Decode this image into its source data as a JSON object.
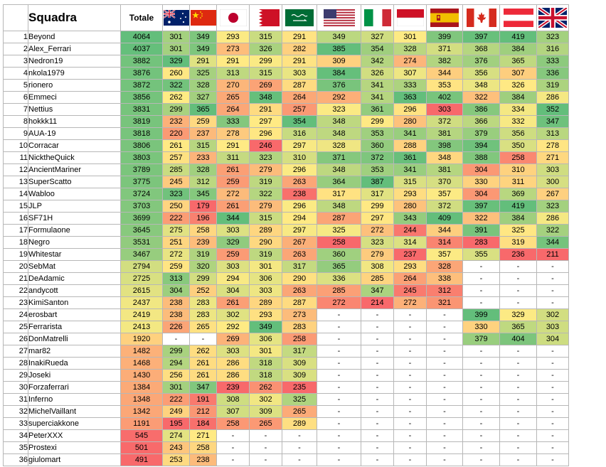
{
  "header": {
    "team_label": "Squadra",
    "total_label": "Totale",
    "flags": [
      "Australia",
      "China",
      "Japan",
      "Bahrain",
      "Saudi Arabia",
      "United States",
      "Italy",
      "Monaco",
      "Spain",
      "Canada",
      "Austria",
      "United Kingdom"
    ]
  },
  "rows": [
    {
      "idx": "1",
      "name": "Beyond",
      "total": "4064",
      "scores": [
        "301",
        "349",
        "293",
        "315",
        "291",
        "349",
        "327",
        "301",
        "399",
        "397",
        "419",
        "323"
      ]
    },
    {
      "idx": "2",
      "name": "Alex_Ferrari",
      "total": "4037",
      "scores": [
        "301",
        "349",
        "273",
        "326",
        "282",
        "385",
        "354",
        "328",
        "371",
        "368",
        "384",
        "316"
      ]
    },
    {
      "idx": "3",
      "name": "Nedron19",
      "total": "3882",
      "scores": [
        "329",
        "291",
        "291",
        "299",
        "291",
        "309",
        "342",
        "274",
        "382",
        "376",
        "365",
        "333"
      ]
    },
    {
      "idx": "4",
      "name": "nkola1979",
      "total": "3876",
      "scores": [
        "260",
        "325",
        "313",
        "315",
        "303",
        "384",
        "326",
        "307",
        "344",
        "356",
        "307",
        "336"
      ]
    },
    {
      "idx": "5",
      "name": "rionero",
      "total": "3872",
      "scores": [
        "322",
        "328",
        "270",
        "269",
        "287",
        "376",
        "341",
        "333",
        "353",
        "348",
        "326",
        "319"
      ]
    },
    {
      "idx": "6",
      "name": "Emmeci",
      "total": "3856",
      "scores": [
        "262",
        "327",
        "265",
        "348",
        "264",
        "292",
        "341",
        "363",
        "402",
        "322",
        "384",
        "286"
      ]
    },
    {
      "idx": "7",
      "name": "Nettius",
      "total": "3831",
      "scores": [
        "299",
        "365",
        "264",
        "291",
        "257",
        "323",
        "361",
        "296",
        "303",
        "386",
        "334",
        "352"
      ]
    },
    {
      "idx": "8",
      "name": "hokkk11",
      "total": "3819",
      "scores": [
        "232",
        "259",
        "333",
        "297",
        "354",
        "348",
        "299",
        "280",
        "372",
        "366",
        "332",
        "347"
      ]
    },
    {
      "idx": "9",
      "name": "AUA-19",
      "total": "3818",
      "scores": [
        "220",
        "237",
        "278",
        "296",
        "316",
        "348",
        "353",
        "341",
        "381",
        "379",
        "356",
        "313"
      ]
    },
    {
      "idx": "10",
      "name": "Corracar",
      "total": "3806",
      "scores": [
        "261",
        "315",
        "291",
        "246",
        "297",
        "328",
        "360",
        "288",
        "398",
        "394",
        "350",
        "278"
      ]
    },
    {
      "idx": "11",
      "name": "NicktheQuick",
      "total": "3803",
      "scores": [
        "257",
        "233",
        "311",
        "323",
        "310",
        "371",
        "372",
        "361",
        "348",
        "388",
        "258",
        "271"
      ]
    },
    {
      "idx": "12",
      "name": "AncientMariner",
      "total": "3789",
      "scores": [
        "285",
        "328",
        "261",
        "279",
        "296",
        "348",
        "353",
        "341",
        "381",
        "304",
        "310",
        "303"
      ]
    },
    {
      "idx": "13",
      "name": "SuperScatto",
      "total": "3775",
      "scores": [
        "245",
        "312",
        "259",
        "319",
        "263",
        "364",
        "387",
        "315",
        "370",
        "330",
        "311",
        "300"
      ]
    },
    {
      "idx": "14",
      "name": "Wabloo",
      "total": "3724",
      "scores": [
        "323",
        "345",
        "272",
        "322",
        "238",
        "317",
        "317",
        "293",
        "357",
        "304",
        "369",
        "267"
      ]
    },
    {
      "idx": "15",
      "name": "JLP",
      "total": "3703",
      "scores": [
        "250",
        "179",
        "261",
        "279",
        "296",
        "348",
        "299",
        "280",
        "372",
        "397",
        "419",
        "323"
      ]
    },
    {
      "idx": "16",
      "name": "SF71H",
      "total": "3699",
      "scores": [
        "222",
        "196",
        "344",
        "315",
        "294",
        "287",
        "297",
        "343",
        "409",
        "322",
        "384",
        "286"
      ]
    },
    {
      "idx": "17",
      "name": "Formulaone",
      "total": "3645",
      "scores": [
        "275",
        "258",
        "303",
        "289",
        "297",
        "325",
        "272",
        "244",
        "344",
        "391",
        "325",
        "322"
      ]
    },
    {
      "idx": "18",
      "name": "Negro",
      "total": "3531",
      "scores": [
        "251",
        "239",
        "329",
        "290",
        "267",
        "258",
        "323",
        "314",
        "314",
        "283",
        "319",
        "344"
      ]
    },
    {
      "idx": "19",
      "name": "Whitestar",
      "total": "3467",
      "scores": [
        "272",
        "319",
        "259",
        "319",
        "263",
        "360",
        "279",
        "237",
        "357",
        "355",
        "236",
        "211"
      ]
    },
    {
      "idx": "20",
      "name": "SebMat",
      "total": "2794",
      "scores": [
        "259",
        "320",
        "303",
        "301",
        "317",
        "365",
        "308",
        "293",
        "328",
        "-",
        "-",
        "-"
      ]
    },
    {
      "idx": "21",
      "name": "DeAdamic",
      "total": "2725",
      "scores": [
        "313",
        "299",
        "294",
        "306",
        "290",
        "336",
        "285",
        "264",
        "338",
        "-",
        "-",
        "-"
      ]
    },
    {
      "idx": "22",
      "name": "andycott",
      "total": "2615",
      "scores": [
        "304",
        "252",
        "304",
        "303",
        "263",
        "285",
        "347",
        "245",
        "312",
        "-",
        "-",
        "-"
      ]
    },
    {
      "idx": "23",
      "name": "KimiSanton",
      "total": "2437",
      "scores": [
        "238",
        "283",
        "261",
        "289",
        "287",
        "272",
        "214",
        "272",
        "321",
        "-",
        "-",
        "-"
      ]
    },
    {
      "idx": "24",
      "name": "erosbart",
      "total": "2419",
      "scores": [
        "238",
        "283",
        "302",
        "293",
        "273",
        "-",
        "-",
        "-",
        "-",
        "399",
        "329",
        "302"
      ]
    },
    {
      "idx": "25",
      "name": "Ferrarista",
      "total": "2413",
      "scores": [
        "226",
        "265",
        "292",
        "349",
        "283",
        "-",
        "-",
        "-",
        "-",
        "330",
        "365",
        "303"
      ]
    },
    {
      "idx": "26",
      "name": "DonMatrelli",
      "total": "1920",
      "scores": [
        "-",
        "-",
        "269",
        "306",
        "258",
        "-",
        "-",
        "-",
        "-",
        "379",
        "404",
        "304"
      ]
    },
    {
      "idx": "27",
      "name": "mar82",
      "total": "1482",
      "scores": [
        "299",
        "262",
        "303",
        "301",
        "317",
        "-",
        "-",
        "-",
        "-",
        "-",
        "-",
        "-"
      ]
    },
    {
      "idx": "28",
      "name": "InakiRueda",
      "total": "1468",
      "scores": [
        "294",
        "261",
        "286",
        "318",
        "309",
        "-",
        "-",
        "-",
        "-",
        "-",
        "-",
        "-"
      ]
    },
    {
      "idx": "29",
      "name": "Joseki",
      "total": "1430",
      "scores": [
        "256",
        "261",
        "286",
        "318",
        "309",
        "-",
        "-",
        "-",
        "-",
        "-",
        "-",
        "-"
      ]
    },
    {
      "idx": "30",
      "name": "Forzaferrari",
      "total": "1384",
      "scores": [
        "301",
        "347",
        "239",
        "262",
        "235",
        "-",
        "-",
        "-",
        "-",
        "-",
        "-",
        "-"
      ]
    },
    {
      "idx": "31",
      "name": "Inferno",
      "total": "1348",
      "scores": [
        "222",
        "191",
        "308",
        "302",
        "325",
        "-",
        "-",
        "-",
        "-",
        "-",
        "-",
        "-"
      ]
    },
    {
      "idx": "32",
      "name": "MichelVaillant",
      "total": "1342",
      "scores": [
        "249",
        "212",
        "307",
        "309",
        "265",
        "-",
        "-",
        "-",
        "-",
        "-",
        "-",
        "-"
      ]
    },
    {
      "idx": "33",
      "name": "superciakkone",
      "total": "1191",
      "scores": [
        "195",
        "184",
        "258",
        "265",
        "289",
        "-",
        "-",
        "-",
        "-",
        "-",
        "-",
        "-"
      ]
    },
    {
      "idx": "34",
      "name": "PeterXXX",
      "total": "545",
      "scores": [
        "274",
        "271",
        "-",
        "-",
        "-",
        "-",
        "-",
        "-",
        "-",
        "-",
        "-",
        "-"
      ]
    },
    {
      "idx": "35",
      "name": "Prostexi",
      "total": "501",
      "scores": [
        "243",
        "258",
        "-",
        "-",
        "-",
        "-",
        "-",
        "-",
        "-",
        "-",
        "-",
        "-"
      ]
    },
    {
      "idx": "36",
      "name": "giulomart",
      "total": "491",
      "scores": [
        "253",
        "238",
        "-",
        "-",
        "-",
        "-",
        "-",
        "-",
        "-",
        "-",
        "-",
        "-"
      ]
    }
  ],
  "colors": {
    "scale_low": "#f8696b",
    "scale_mid": "#ffeb84",
    "scale_high": "#63be7b",
    "grid": "#b7b7b7",
    "empty_cell": "#ffffff"
  }
}
